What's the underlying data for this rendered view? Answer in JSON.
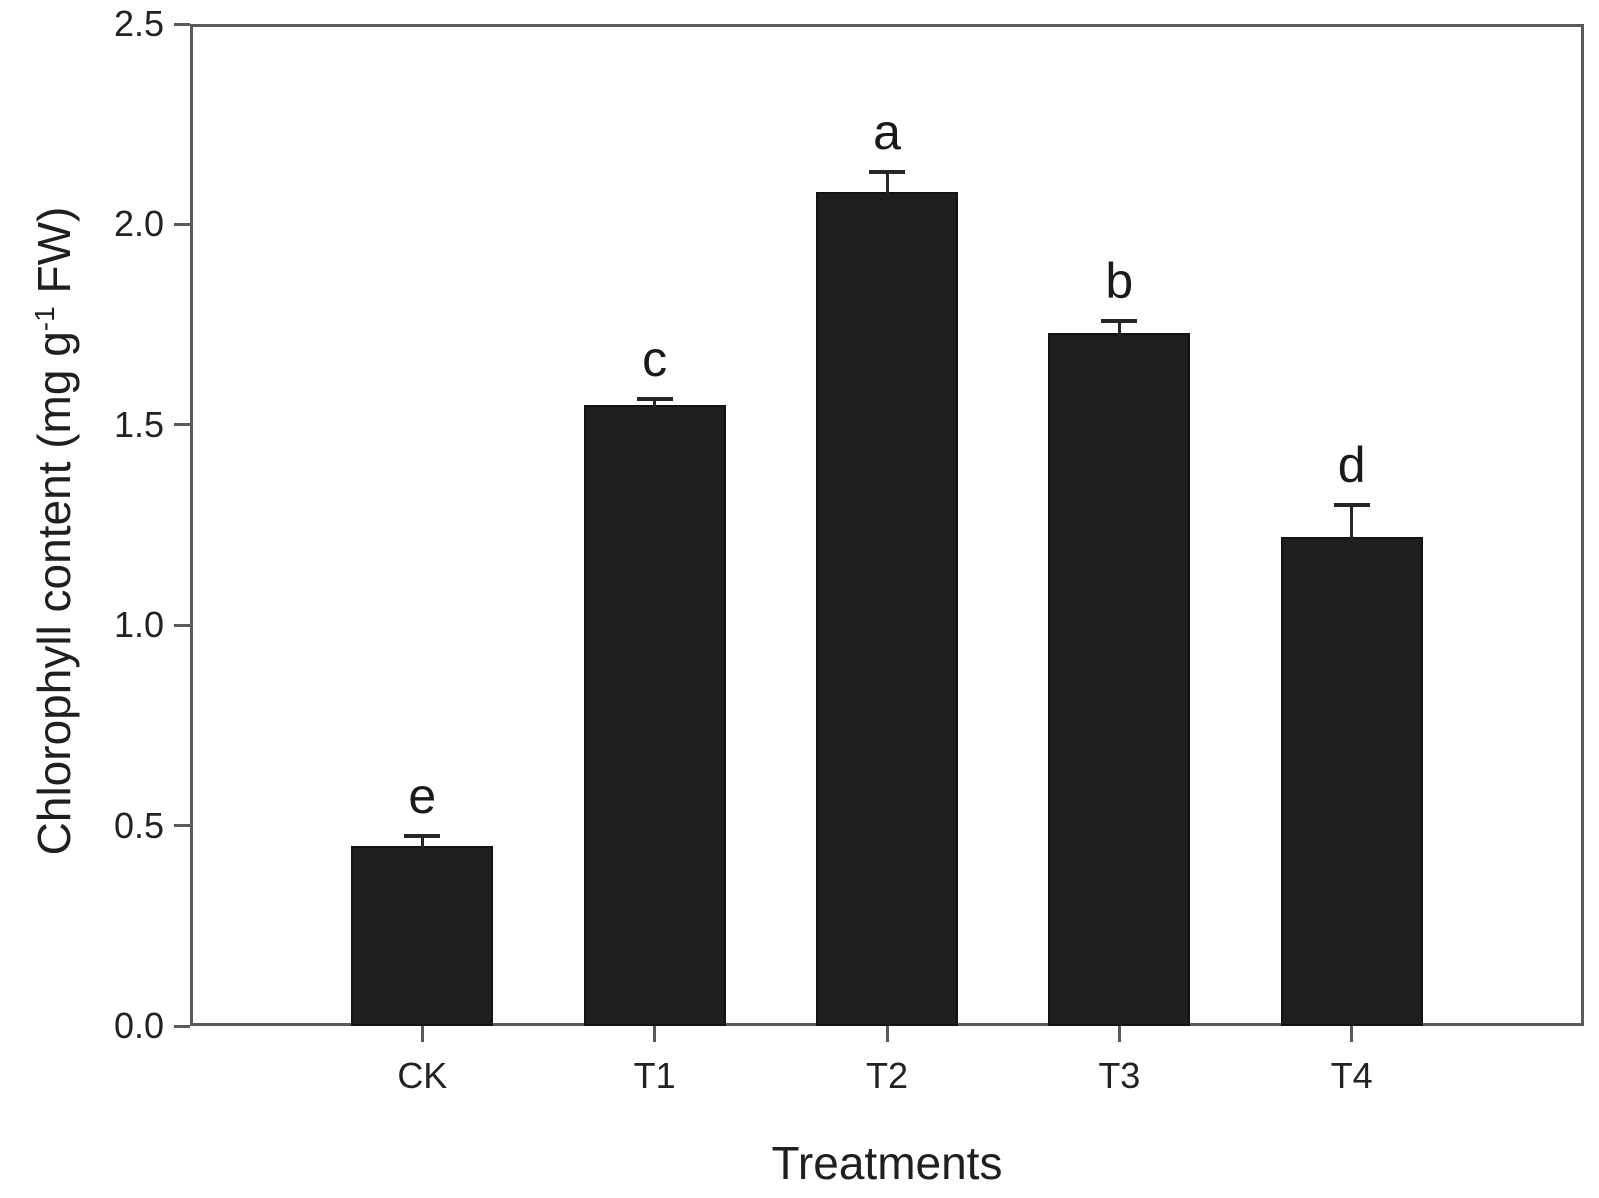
{
  "chart_data": {
    "type": "bar",
    "title": "",
    "categories": [
      "CK",
      "T1",
      "T2",
      "T3",
      "T4"
    ],
    "values": [
      0.45,
      1.55,
      2.08,
      1.73,
      1.22
    ],
    "errors": [
      0.025,
      0.015,
      0.05,
      0.03,
      0.08
    ],
    "sig_letters": [
      "e",
      "c",
      "a",
      "b",
      "d"
    ],
    "xlabel": "Treatments",
    "ylabel": "Chlorophyll content (mg g⁻¹ FW)",
    "ylabel_parts": {
      "pre": "Chlorophyll content (mg g",
      "sup": "-1",
      "post": " FW)"
    },
    "ylim": [
      0,
      2.5
    ],
    "yticks": [
      0.0,
      0.5,
      1.0,
      1.5,
      2.0,
      2.5
    ],
    "ytick_labels": [
      "0.0",
      "0.5",
      "1.0",
      "1.5",
      "2.0",
      "2.5"
    ],
    "grid": false,
    "legend": null,
    "colors": {
      "bar": "#1f1f1f",
      "bar_border": "#131313",
      "axis": "#5a5a5a",
      "error": "#262626",
      "text": "#222222",
      "background": "#ffffff"
    }
  }
}
